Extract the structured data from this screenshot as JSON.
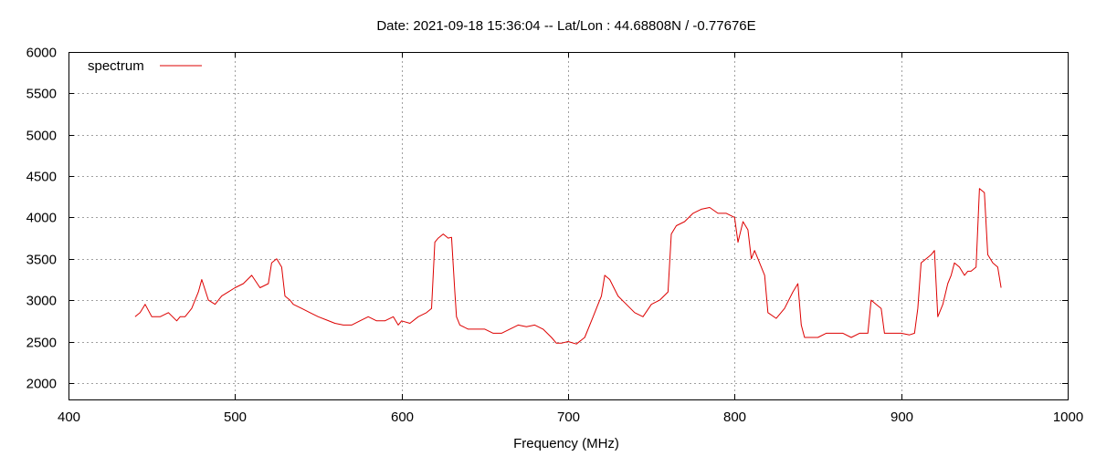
{
  "chart_data": {
    "type": "line",
    "title": "Date: 2021-09-18 15:36:04  --  Lat/Lon : 44.68808N / -0.77676E",
    "xlabel": "Frequency (MHz)",
    "ylabel": "",
    "xlim": [
      400,
      1000
    ],
    "ylim": [
      1800,
      6000
    ],
    "xticks": [
      400,
      500,
      600,
      700,
      800,
      900,
      1000
    ],
    "yticks": [
      2000,
      2500,
      3000,
      3500,
      4000,
      4500,
      5000,
      5500,
      6000
    ],
    "grid": true,
    "legend_position": "top-left",
    "series": [
      {
        "name": "spectrum",
        "color": "#dd0000",
        "x": [
          440,
          443,
          446,
          450,
          455,
          460,
          465,
          467,
          470,
          474,
          478,
          480,
          484,
          488,
          492,
          496,
          500,
          505,
          510,
          515,
          520,
          522,
          525,
          528,
          530,
          533,
          535,
          540,
          545,
          550,
          555,
          560,
          565,
          570,
          575,
          580,
          582,
          585,
          590,
          595,
          598,
          600,
          605,
          610,
          615,
          618,
          620,
          622,
          625,
          628,
          630,
          632,
          633,
          635,
          640,
          645,
          650,
          655,
          660,
          665,
          670,
          675,
          680,
          685,
          690,
          693,
          696,
          700,
          705,
          710,
          715,
          718,
          720,
          722,
          725,
          730,
          735,
          740,
          745,
          750,
          755,
          760,
          762,
          765,
          770,
          775,
          780,
          785,
          790,
          795,
          800,
          802,
          805,
          808,
          810,
          812,
          815,
          818,
          820,
          825,
          830,
          835,
          838,
          840,
          842,
          845,
          850,
          855,
          860,
          865,
          870,
          875,
          880,
          882,
          885,
          888,
          890,
          895,
          900,
          905,
          908,
          910,
          912,
          915,
          918,
          920,
          922,
          925,
          928,
          930,
          932,
          935,
          938,
          940,
          942,
          945,
          947,
          950,
          952,
          955,
          958,
          960
        ],
        "y": [
          2800,
          2850,
          2950,
          2800,
          2800,
          2850,
          2750,
          2800,
          2800,
          2900,
          3100,
          3250,
          3000,
          2950,
          3050,
          3100,
          3150,
          3200,
          3300,
          3150,
          3200,
          3450,
          3500,
          3400,
          3050,
          3000,
          2950,
          2900,
          2850,
          2800,
          2760,
          2720,
          2700,
          2700,
          2750,
          2800,
          2780,
          2750,
          2750,
          2800,
          2700,
          2750,
          2720,
          2800,
          2850,
          2900,
          3700,
          3750,
          3800,
          3750,
          3760,
          3100,
          2800,
          2700,
          2650,
          2650,
          2650,
          2600,
          2600,
          2650,
          2700,
          2680,
          2700,
          2650,
          2550,
          2480,
          2480,
          2500,
          2470,
          2550,
          2800,
          2950,
          3050,
          3300,
          3250,
          3050,
          2950,
          2850,
          2800,
          2950,
          3000,
          3100,
          3800,
          3900,
          3950,
          4050,
          4100,
          4120,
          4050,
          4050,
          4000,
          3700,
          3950,
          3850,
          3500,
          3600,
          3450,
          3300,
          2850,
          2780,
          2900,
          3100,
          3200,
          2700,
          2550,
          2550,
          2550,
          2600,
          2600,
          2600,
          2550,
          2600,
          2600,
          3000,
          2950,
          2900,
          2600,
          2600,
          2600,
          2580,
          2600,
          2900,
          3450,
          3500,
          3550,
          3600,
          2800,
          2950,
          3200,
          3300,
          3450,
          3400,
          3300,
          3350,
          3350,
          3400,
          4350,
          4300,
          3550,
          3450,
          3400,
          3150
        ]
      }
    ]
  }
}
